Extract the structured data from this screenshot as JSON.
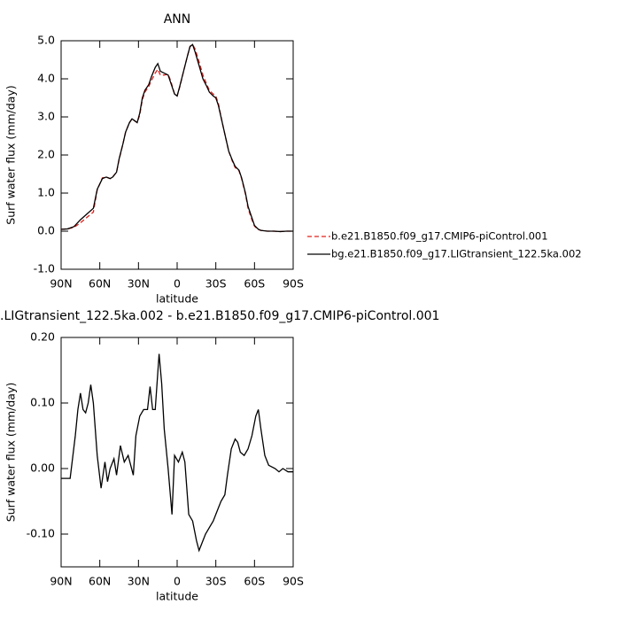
{
  "chart_data": [
    {
      "type": "line",
      "title": "ANN",
      "xlabel": "latitude",
      "ylabel": "Surf water flux (mm/day)",
      "xlim": [
        90,
        -90
      ],
      "ylim": [
        -1.0,
        5.0
      ],
      "xticks": [
        {
          "value": 90,
          "label": "90N"
        },
        {
          "value": 60,
          "label": "60N"
        },
        {
          "value": 30,
          "label": "30N"
        },
        0,
        {
          "value": -30,
          "label": "30S"
        },
        {
          "value": -60,
          "label": "60S"
        },
        {
          "value": -90,
          "label": "90S"
        }
      ],
      "yticks": [
        {
          "value": -1.0,
          "label": "-1.0"
        },
        {
          "value": 0.0,
          "label": "0.0"
        },
        {
          "value": 1.0,
          "label": "1.0"
        },
        {
          "value": 2.0,
          "label": "2.0"
        },
        {
          "value": 3.0,
          "label": "3.0"
        },
        {
          "value": 4.0,
          "label": "4.0"
        },
        {
          "value": 5.0,
          "label": "5.0"
        }
      ],
      "legend": "right",
      "x": [
        90,
        85,
        80,
        75,
        70,
        65,
        62,
        58,
        55,
        52,
        50,
        47,
        45,
        42,
        40,
        37,
        35,
        33,
        31,
        29,
        27,
        25,
        22,
        20,
        17,
        15,
        13,
        10,
        7,
        5,
        2,
        0,
        -2,
        -5,
        -8,
        -10,
        -12,
        -14,
        -17,
        -20,
        -23,
        -25,
        -28,
        -30,
        -32,
        -35,
        -38,
        -40,
        -43,
        -45,
        -48,
        -50,
        -53,
        -55,
        -58,
        -60,
        -63,
        -65,
        -70,
        -75,
        -80,
        -85,
        -90
      ],
      "series": [
        {
          "name": "b.e21.B1850.f09_g17.CMIP6-piControl.001",
          "color": "#e0201b",
          "dash": true,
          "values": [
            0.05,
            0.06,
            0.1,
            0.22,
            0.36,
            0.5,
            1.08,
            1.4,
            1.42,
            1.38,
            1.42,
            1.55,
            1.88,
            2.3,
            2.6,
            2.85,
            2.95,
            2.9,
            2.85,
            3.05,
            3.45,
            3.65,
            3.8,
            3.95,
            4.15,
            4.25,
            4.1,
            4.1,
            4.12,
            3.95,
            3.6,
            3.55,
            3.78,
            4.2,
            4.6,
            4.85,
            4.9,
            4.78,
            4.45,
            4.1,
            3.85,
            3.7,
            3.6,
            3.55,
            3.35,
            2.85,
            2.4,
            2.1,
            1.82,
            1.67,
            1.58,
            1.38,
            0.97,
            0.6,
            0.3,
            0.13,
            0.04,
            0.02,
            0.0,
            0.0,
            -0.01,
            0.0,
            0.0
          ]
        },
        {
          "name": "bg.e21.B1850.f09_g17.LIGtransient_122.5ka.002",
          "color": "#000000",
          "dash": false,
          "values": [
            0.05,
            0.06,
            0.12,
            0.3,
            0.45,
            0.6,
            1.1,
            1.38,
            1.42,
            1.38,
            1.42,
            1.55,
            1.9,
            2.3,
            2.6,
            2.85,
            2.95,
            2.9,
            2.85,
            3.1,
            3.5,
            3.7,
            3.85,
            4.05,
            4.3,
            4.4,
            4.2,
            4.15,
            4.1,
            3.9,
            3.6,
            3.55,
            3.8,
            4.2,
            4.6,
            4.85,
            4.9,
            4.7,
            4.35,
            4.0,
            3.8,
            3.65,
            3.55,
            3.5,
            3.3,
            2.85,
            2.4,
            2.1,
            1.85,
            1.7,
            1.6,
            1.4,
            1.0,
            0.65,
            0.35,
            0.15,
            0.05,
            0.02,
            0.0,
            0.0,
            -0.01,
            0.0,
            0.0
          ]
        }
      ]
    },
    {
      "type": "line",
      "title": ".LIGtransient_122.5ka.002 - b.e21.B1850.f09_g17.CMIP6-piControl.001",
      "xlabel": "latitude",
      "ylabel": "Surf water flux (mm/day)",
      "xlim": [
        90,
        -90
      ],
      "ylim": [
        -0.15,
        0.2
      ],
      "xticks": [
        {
          "value": 90,
          "label": "90N"
        },
        {
          "value": 60,
          "label": "60N"
        },
        {
          "value": 30,
          "label": "30N"
        },
        0,
        {
          "value": -30,
          "label": "30S"
        },
        {
          "value": -60,
          "label": "60S"
        },
        {
          "value": -90,
          "label": "90S"
        }
      ],
      "yticks": [
        {
          "value": -0.1,
          "label": "-0.10"
        },
        {
          "value": 0.0,
          "label": "0.00"
        },
        {
          "value": 0.1,
          "label": "0.10"
        },
        {
          "value": 0.2,
          "label": "0.20"
        }
      ],
      "x": [
        90,
        83,
        79,
        77,
        75,
        73,
        71,
        69,
        67,
        65,
        62,
        59,
        56,
        54,
        52,
        49,
        47,
        44,
        41,
        38,
        34,
        32,
        29,
        26,
        23,
        21,
        19,
        17,
        14,
        12,
        10,
        7,
        4,
        2,
        -1,
        -4,
        -6,
        -9,
        -12,
        -15,
        -17,
        -19,
        -22,
        -25,
        -28,
        -30,
        -34,
        -37,
        -39,
        -42,
        -45,
        -47,
        -49,
        -52,
        -55,
        -58,
        -61,
        -63,
        -65,
        -68,
        -71,
        -76,
        -79,
        -82,
        -86,
        -90
      ],
      "series": [
        {
          "color": "#000000",
          "dash": false,
          "values": [
            -0.015,
            -0.015,
            0.05,
            0.09,
            0.115,
            0.09,
            0.085,
            0.1,
            0.128,
            0.1,
            0.02,
            -0.03,
            0.01,
            -0.02,
            0.0,
            0.015,
            -0.01,
            0.035,
            0.01,
            0.02,
            -0.01,
            0.05,
            0.08,
            0.09,
            0.09,
            0.125,
            0.09,
            0.09,
            0.175,
            0.13,
            0.06,
            0.0,
            -0.07,
            0.02,
            0.01,
            0.025,
            0.01,
            -0.07,
            -0.08,
            -0.11,
            -0.125,
            -0.115,
            -0.1,
            -0.09,
            -0.08,
            -0.07,
            -0.05,
            -0.04,
            -0.01,
            0.03,
            0.045,
            0.04,
            0.025,
            0.02,
            0.03,
            0.05,
            0.08,
            0.09,
            0.06,
            0.02,
            0.005,
            0.0,
            -0.005,
            0.0,
            -0.005,
            -0.005
          ]
        }
      ]
    }
  ]
}
